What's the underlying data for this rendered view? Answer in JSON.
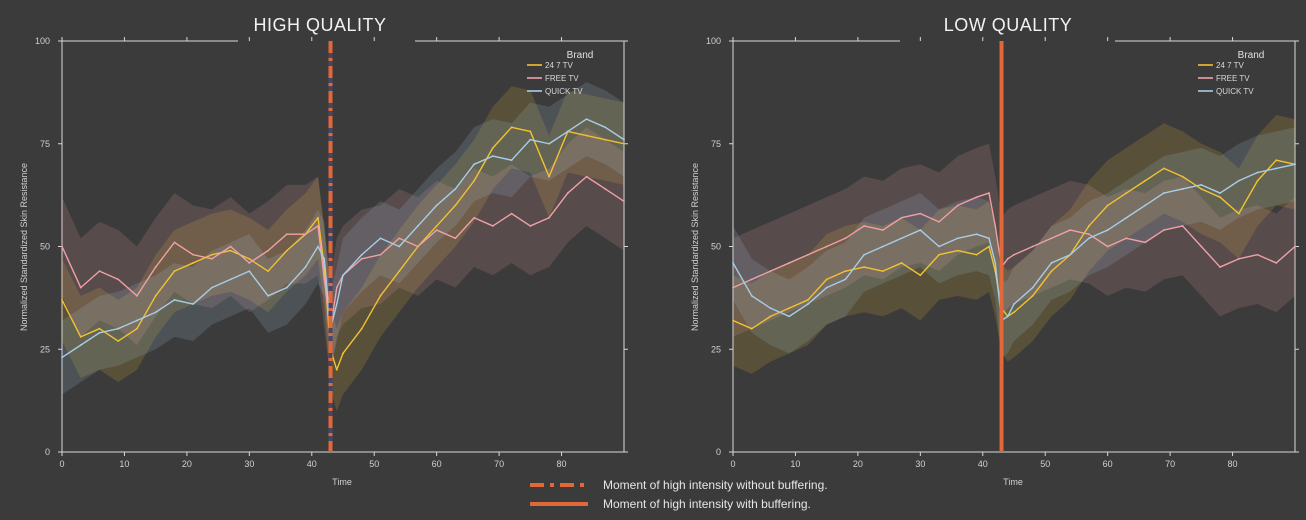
{
  "colors": {
    "background": "#3b3b3b",
    "axis": "#d8d8d8",
    "marker": "#e2683a",
    "marker_dash_alt": "#4a4466"
  },
  "footer_legend": {
    "without_buffering": "Moment of high intensity without buffering.",
    "with_buffering": "Moment of high intensity with buffering."
  },
  "chart_data": [
    {
      "type": "line",
      "title": "HIGH QUALITY",
      "xlabel": "Time",
      "ylabel": "Normalized Standardized Skin Resistance",
      "xlim": [
        0,
        90
      ],
      "ylim": [
        0,
        100
      ],
      "xticks": [
        0,
        10,
        20,
        30,
        40,
        50,
        60,
        70,
        80
      ],
      "yticks": [
        0,
        25,
        50,
        75,
        100
      ],
      "legend_title": "Brand",
      "legend_position": "top-right",
      "marker": {
        "x": 43,
        "style": "dash-dot",
        "label": "Moment of high intensity without buffering."
      },
      "series": [
        {
          "name": "24 7 TV",
          "color": "#f2c230",
          "x": [
            0,
            3,
            6,
            9,
            12,
            15,
            18,
            21,
            24,
            27,
            30,
            33,
            36,
            39,
            41,
            42,
            43,
            44,
            45,
            48,
            51,
            54,
            57,
            60,
            63,
            66,
            69,
            72,
            75,
            78,
            81,
            84,
            87,
            90
          ],
          "values": [
            37,
            28,
            30,
            27,
            30,
            38,
            44,
            46,
            48,
            49,
            47,
            44,
            49,
            53,
            57,
            45,
            25,
            20,
            24,
            30,
            38,
            44,
            50,
            55,
            60,
            66,
            74,
            79,
            78,
            67,
            78,
            77,
            76,
            75
          ],
          "band": 10
        },
        {
          "name": "FREE TV",
          "color": "#f0a0a6",
          "x": [
            0,
            3,
            6,
            9,
            12,
            15,
            18,
            21,
            24,
            27,
            30,
            33,
            36,
            39,
            41,
            42,
            43,
            44,
            45,
            48,
            51,
            54,
            57,
            60,
            63,
            66,
            69,
            72,
            75,
            78,
            81,
            84,
            87,
            90
          ],
          "values": [
            50,
            40,
            44,
            42,
            38,
            45,
            51,
            48,
            47,
            50,
            46,
            49,
            53,
            53,
            55,
            42,
            30,
            40,
            43,
            47,
            48,
            52,
            50,
            54,
            52,
            57,
            55,
            58,
            55,
            57,
            63,
            67,
            64,
            61
          ],
          "band": 12
        },
        {
          "name": "QUICK TV",
          "color": "#a8cde8",
          "x": [
            0,
            3,
            6,
            9,
            12,
            15,
            18,
            21,
            24,
            27,
            30,
            33,
            36,
            39,
            41,
            42,
            43,
            44,
            45,
            48,
            51,
            54,
            57,
            60,
            63,
            66,
            69,
            72,
            75,
            78,
            81,
            84,
            87,
            90
          ],
          "values": [
            23,
            26,
            29,
            30,
            32,
            34,
            37,
            36,
            40,
            42,
            44,
            38,
            40,
            45,
            50,
            47,
            30,
            36,
            43,
            48,
            52,
            50,
            55,
            60,
            64,
            70,
            72,
            71,
            76,
            75,
            78,
            81,
            79,
            76
          ],
          "band": 9
        }
      ]
    },
    {
      "type": "line",
      "title": "LOW  QUALITY",
      "xlabel": "Time",
      "ylabel": "Normalized Standardized Skin Resistance",
      "xlim": [
        0,
        90
      ],
      "ylim": [
        0,
        100
      ],
      "xticks": [
        0,
        10,
        20,
        30,
        40,
        50,
        60,
        70,
        80
      ],
      "yticks": [
        0,
        25,
        50,
        75,
        100
      ],
      "legend_title": "Brand",
      "legend_position": "top-right",
      "marker": {
        "x": 43,
        "style": "solid",
        "label": "Moment of high intensity with buffering."
      },
      "series": [
        {
          "name": "24 7 TV",
          "color": "#f2c230",
          "x": [
            0,
            3,
            6,
            9,
            12,
            15,
            18,
            21,
            24,
            27,
            30,
            33,
            36,
            39,
            41,
            42,
            43,
            44,
            45,
            48,
            51,
            54,
            57,
            60,
            63,
            66,
            69,
            72,
            75,
            78,
            81,
            84,
            87,
            90
          ],
          "values": [
            32,
            30,
            33,
            35,
            37,
            42,
            44,
            45,
            44,
            46,
            43,
            48,
            49,
            48,
            50,
            44,
            35,
            33,
            34,
            38,
            44,
            48,
            55,
            60,
            63,
            66,
            69,
            67,
            64,
            62,
            58,
            66,
            71,
            70
          ],
          "band": 11
        },
        {
          "name": "FREE TV",
          "color": "#f0a0a6",
          "x": [
            0,
            3,
            6,
            9,
            12,
            15,
            18,
            21,
            24,
            27,
            30,
            33,
            36,
            39,
            41,
            42,
            43,
            44,
            45,
            48,
            51,
            54,
            57,
            60,
            63,
            66,
            69,
            72,
            75,
            78,
            81,
            84,
            87,
            90
          ],
          "values": [
            40,
            42,
            44,
            46,
            48,
            50,
            52,
            55,
            54,
            57,
            58,
            56,
            60,
            62,
            63,
            55,
            45,
            47,
            48,
            50,
            52,
            54,
            53,
            50,
            52,
            51,
            54,
            55,
            50,
            45,
            47,
            48,
            46,
            50
          ],
          "band": 12
        },
        {
          "name": "QUICK TV",
          "color": "#a8cde8",
          "x": [
            0,
            3,
            6,
            9,
            12,
            15,
            18,
            21,
            24,
            27,
            30,
            33,
            36,
            39,
            41,
            42,
            43,
            44,
            45,
            48,
            51,
            54,
            57,
            60,
            63,
            66,
            69,
            72,
            75,
            78,
            81,
            84,
            87,
            90
          ],
          "values": [
            46,
            38,
            35,
            33,
            36,
            40,
            42,
            48,
            50,
            52,
            54,
            50,
            52,
            53,
            52,
            46,
            32,
            33,
            36,
            40,
            46,
            48,
            52,
            54,
            57,
            60,
            63,
            64,
            65,
            63,
            66,
            68,
            69,
            70
          ],
          "band": 9
        }
      ]
    }
  ]
}
